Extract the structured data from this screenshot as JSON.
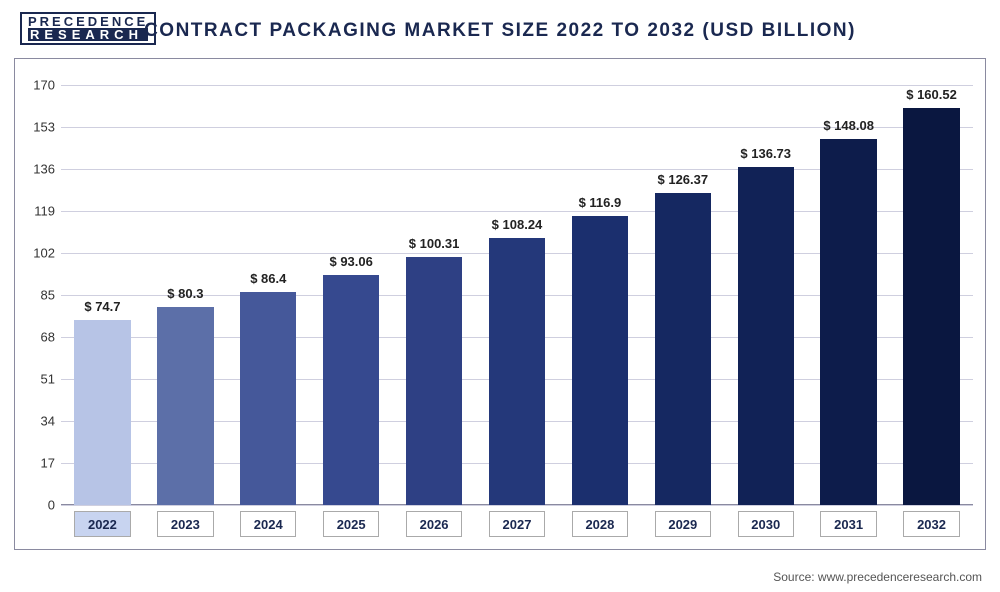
{
  "logo": {
    "line1": "PRECEDENCE",
    "line2": "RESEARCH"
  },
  "title": "CONTRACT PACKAGING MARKET SIZE 2022 TO 2032 (USD BILLION)",
  "source": "Source: www.precedenceresearch.com",
  "chart": {
    "type": "bar",
    "ylim": [
      0,
      170
    ],
    "ytick_step": 17,
    "yticks": [
      0,
      17,
      34,
      51,
      68,
      85,
      102,
      119,
      136,
      153,
      170
    ],
    "grid_color": "#cfcfdf",
    "background": "#ffffff",
    "bar_width_ratio": 0.68,
    "value_prefix": "$ ",
    "value_fontsize": 13,
    "label_fontsize": 13,
    "legend_highlight_first": true,
    "legend_highlight_color": "#c8d4f0",
    "categories": [
      "2022",
      "2023",
      "2024",
      "2025",
      "2026",
      "2027",
      "2028",
      "2029",
      "2030",
      "2031",
      "2032"
    ],
    "values": [
      74.7,
      80.3,
      86.4,
      93.06,
      100.31,
      108.24,
      116.9,
      126.37,
      136.73,
      148.08,
      160.52
    ],
    "bar_colors": [
      "#b7c4e6",
      "#5c6fa8",
      "#45589a",
      "#36498f",
      "#2e4084",
      "#24387a",
      "#1b2f6e",
      "#152861",
      "#112256",
      "#0d1c4b",
      "#0a1740"
    ]
  }
}
